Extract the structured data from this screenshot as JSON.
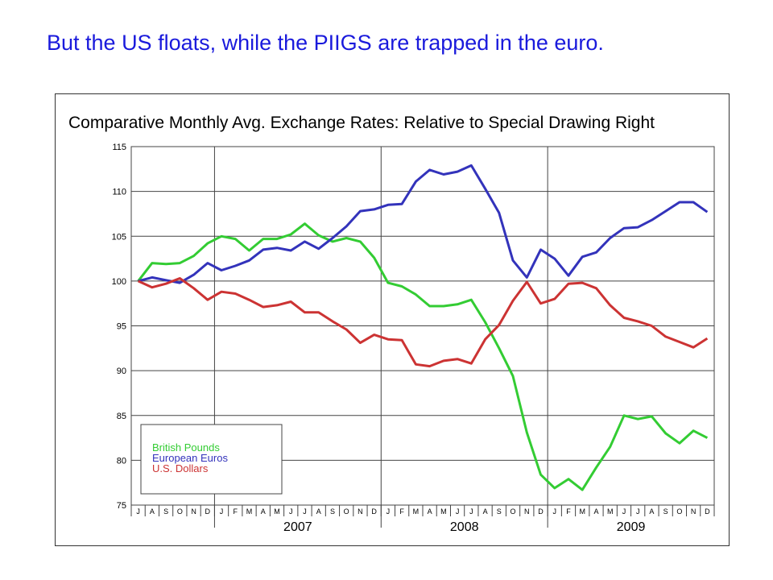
{
  "slide": {
    "title": "But the US floats, while the PIIGS are trapped in the euro."
  },
  "colors": {
    "title": "#1a1adc",
    "pounds": "#33cc33",
    "euros": "#3333bb",
    "dollars": "#cc3333"
  },
  "chart_data": {
    "type": "line",
    "title": "Comparative Monthly Avg. Exchange Rates: Relative to Special Drawing Right",
    "xlabel": "",
    "ylabel": "",
    "ylim": [
      75,
      115
    ],
    "yticks": [
      75,
      80,
      85,
      90,
      95,
      100,
      105,
      110,
      115
    ],
    "grid": true,
    "legend_position": "bottom-left",
    "months": [
      "J",
      "A",
      "S",
      "O",
      "N",
      "D",
      "J",
      "F",
      "M",
      "A",
      "M",
      "J",
      "J",
      "A",
      "S",
      "O",
      "N",
      "D",
      "J",
      "F",
      "M",
      "A",
      "M",
      "J",
      "J",
      "A",
      "S",
      "O",
      "N",
      "D",
      "J",
      "F",
      "M",
      "A",
      "M",
      "J",
      "J",
      "A",
      "S",
      "O",
      "N",
      "D"
    ],
    "years": [
      {
        "label": "2007",
        "start_index": 6,
        "end_index": 17
      },
      {
        "label": "2008",
        "start_index": 18,
        "end_index": 29
      },
      {
        "label": "2009",
        "start_index": 30,
        "end_index": 41
      }
    ],
    "categories": [
      "2006-07",
      "2006-08",
      "2006-09",
      "2006-10",
      "2006-11",
      "2006-12",
      "2007-01",
      "2007-02",
      "2007-03",
      "2007-04",
      "2007-05",
      "2007-06",
      "2007-07",
      "2007-08",
      "2007-09",
      "2007-10",
      "2007-11",
      "2007-12",
      "2008-01",
      "2008-02",
      "2008-03",
      "2008-04",
      "2008-05",
      "2008-06",
      "2008-07",
      "2008-08",
      "2008-09",
      "2008-10",
      "2008-11",
      "2008-12",
      "2009-01",
      "2009-02",
      "2009-03",
      "2009-04",
      "2009-05",
      "2009-06",
      "2009-07",
      "2009-08",
      "2009-09",
      "2009-10",
      "2009-11",
      "2009-12"
    ],
    "series": [
      {
        "name": "British Pounds",
        "color": "#33cc33",
        "values": [
          100.0,
          102.0,
          101.9,
          102.0,
          102.8,
          104.2,
          105.0,
          104.7,
          103.4,
          104.7,
          104.7,
          105.2,
          106.4,
          105.1,
          104.4,
          104.8,
          104.4,
          102.6,
          99.8,
          99.4,
          98.5,
          97.2,
          97.2,
          97.4,
          97.9,
          95.4,
          92.5,
          89.4,
          83.1,
          78.4,
          76.9,
          77.9,
          76.7,
          79.2,
          81.5,
          85.0,
          84.6,
          84.9,
          83.0,
          81.9,
          83.3,
          82.5
        ]
      },
      {
        "name": "European Euros",
        "color": "#3333bb",
        "values": [
          100.0,
          100.4,
          100.1,
          99.8,
          100.7,
          102.0,
          101.2,
          101.7,
          102.3,
          103.5,
          103.7,
          103.4,
          104.4,
          103.6,
          104.8,
          106.1,
          107.8,
          108.0,
          108.5,
          108.6,
          111.1,
          112.4,
          111.9,
          112.2,
          112.9,
          110.3,
          107.6,
          102.3,
          100.4,
          103.5,
          102.5,
          100.6,
          102.7,
          103.2,
          104.8,
          105.9,
          106.0,
          106.8,
          107.8,
          108.8,
          108.8,
          107.7
        ]
      },
      {
        "name": "U.S. Dollars",
        "color": "#cc3333",
        "values": [
          100.0,
          99.3,
          99.7,
          100.3,
          99.2,
          97.9,
          98.8,
          98.6,
          97.9,
          97.1,
          97.3,
          97.7,
          96.5,
          96.5,
          95.5,
          94.6,
          93.1,
          94.0,
          93.5,
          93.4,
          90.7,
          90.5,
          91.1,
          91.3,
          90.8,
          93.5,
          95.1,
          97.8,
          99.9,
          97.5,
          98.0,
          99.7,
          99.8,
          99.2,
          97.3,
          95.9,
          95.5,
          95.0,
          93.8,
          93.2,
          92.6,
          93.6
        ]
      }
    ]
  }
}
